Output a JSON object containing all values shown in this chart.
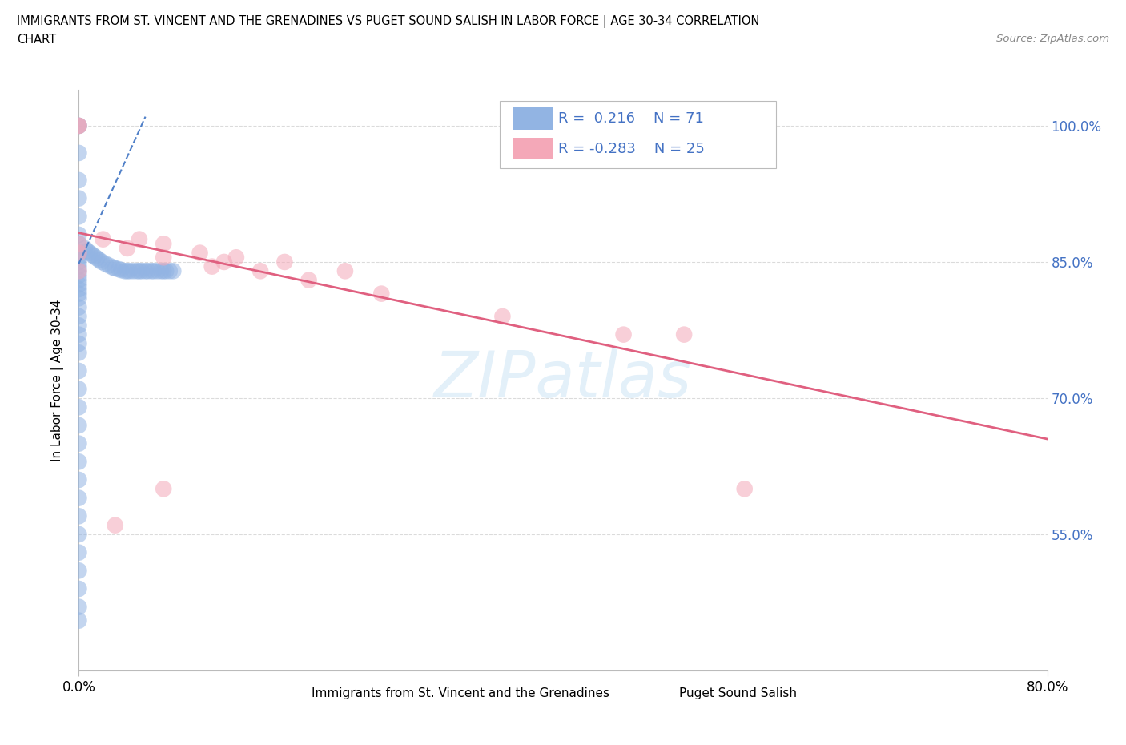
{
  "title_line1": "IMMIGRANTS FROM ST. VINCENT AND THE GRENADINES VS PUGET SOUND SALISH IN LABOR FORCE | AGE 30-34 CORRELATION",
  "title_line2": "CHART",
  "source_text": "Source: ZipAtlas.com",
  "ylabel": "In Labor Force | Age 30-34",
  "xlim": [
    0.0,
    0.8
  ],
  "ylim": [
    0.4,
    1.04
  ],
  "x_tick_vals": [
    0.0,
    0.8
  ],
  "x_tick_labels": [
    "0.0%",
    "80.0%"
  ],
  "y_tick_vals": [
    0.55,
    0.7,
    0.85,
    1.0
  ],
  "y_tick_labels": [
    "55.0%",
    "70.0%",
    "85.0%",
    "100.0%"
  ],
  "blue_R": "0.216",
  "blue_N": "71",
  "pink_R": "-0.283",
  "pink_N": "25",
  "blue_color": "#92b4e3",
  "pink_color": "#f4a8b8",
  "blue_trend_color": "#5080c8",
  "pink_trend_color": "#e06080",
  "legend_text_color": "#4472c4",
  "watermark": "ZIPatlas",
  "blue_scatter_x": [
    0.0,
    0.0,
    0.0,
    0.0,
    0.0,
    0.0,
    0.0,
    0.0,
    0.0,
    0.0,
    0.0,
    0.0,
    0.0,
    0.0,
    0.0,
    0.0,
    0.0,
    0.0,
    0.0,
    0.0,
    0.0,
    0.0,
    0.0,
    0.0,
    0.0,
    0.0,
    0.0,
    0.0,
    0.0,
    0.0,
    0.0,
    0.0,
    0.0,
    0.0,
    0.0,
    0.0,
    0.0,
    0.0,
    0.0,
    0.0,
    0.005,
    0.007,
    0.009,
    0.011,
    0.013,
    0.015,
    0.017,
    0.019,
    0.022,
    0.025,
    0.028,
    0.03,
    0.033,
    0.035,
    0.038,
    0.04,
    0.042,
    0.045,
    0.048,
    0.05,
    0.052,
    0.055,
    0.057,
    0.06,
    0.062,
    0.065,
    0.068,
    0.07,
    0.072,
    0.075,
    0.078
  ],
  "blue_scatter_y": [
    1.0,
    1.0,
    0.97,
    0.94,
    0.92,
    0.9,
    0.88,
    0.87,
    0.86,
    0.855,
    0.85,
    0.845,
    0.84,
    0.835,
    0.83,
    0.825,
    0.82,
    0.815,
    0.81,
    0.8,
    0.79,
    0.78,
    0.77,
    0.76,
    0.75,
    0.73,
    0.71,
    0.69,
    0.67,
    0.65,
    0.63,
    0.61,
    0.59,
    0.57,
    0.55,
    0.53,
    0.51,
    0.49,
    0.47,
    0.455,
    0.865,
    0.862,
    0.86,
    0.858,
    0.856,
    0.854,
    0.852,
    0.85,
    0.848,
    0.846,
    0.844,
    0.843,
    0.842,
    0.841,
    0.84,
    0.84,
    0.84,
    0.84,
    0.84,
    0.84,
    0.84,
    0.84,
    0.84,
    0.84,
    0.84,
    0.84,
    0.84,
    0.84,
    0.84,
    0.84,
    0.84
  ],
  "pink_scatter_x": [
    0.0,
    0.0,
    0.02,
    0.05,
    0.07,
    0.1,
    0.13,
    0.17,
    0.22,
    0.5,
    0.0,
    0.04,
    0.07,
    0.11,
    0.15,
    0.19,
    0.25,
    0.35,
    0.45,
    0.55,
    0.0,
    0.0,
    0.03,
    0.07,
    0.12
  ],
  "pink_scatter_y": [
    1.0,
    1.0,
    0.875,
    0.875,
    0.87,
    0.86,
    0.855,
    0.85,
    0.84,
    0.77,
    0.87,
    0.865,
    0.855,
    0.845,
    0.84,
    0.83,
    0.815,
    0.79,
    0.77,
    0.6,
    0.86,
    0.84,
    0.56,
    0.6,
    0.85
  ],
  "blue_trend_x": [
    0.0,
    0.055
  ],
  "blue_trend_y": [
    0.848,
    1.01
  ],
  "pink_trend_x": [
    0.0,
    0.8
  ],
  "pink_trend_y": [
    0.882,
    0.655
  ]
}
